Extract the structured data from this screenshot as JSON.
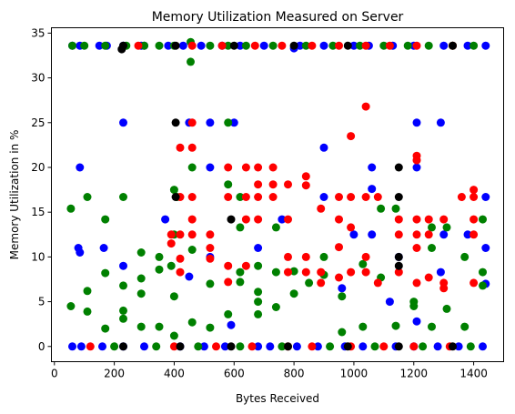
{
  "chart_data": {
    "type": "scatter",
    "title": "Memory Utilization Measured on Server",
    "xlabel": "Bytes Received",
    "ylabel": "Memory Utilization in %",
    "xlim": [
      -10,
      1500
    ],
    "ylim": [
      -1.7,
      35.6
    ],
    "xticks": [
      0,
      200,
      400,
      600,
      800,
      1000,
      1200,
      1400
    ],
    "yticks": [
      0,
      5,
      10,
      15,
      20,
      25,
      30,
      35
    ],
    "grid": false,
    "series": [
      {
        "color": "#0000ff",
        "points": [
          [
            60,
            33.6
          ],
          [
            85,
            33.6
          ],
          [
            150,
            33.6
          ],
          [
            175,
            33.6
          ],
          [
            230,
            33.6
          ],
          [
            290,
            33.6
          ],
          [
            300,
            33.6
          ],
          [
            380,
            33.6
          ],
          [
            430,
            33.6
          ],
          [
            490,
            33.6
          ],
          [
            560,
            33.6
          ],
          [
            620,
            33.6
          ],
          [
            700,
            33.6
          ],
          [
            800,
            33.3
          ],
          [
            820,
            33.6
          ],
          [
            900,
            33.6
          ],
          [
            1000,
            33.6
          ],
          [
            1050,
            33.6
          ],
          [
            1130,
            33.6
          ],
          [
            1200,
            33.6
          ],
          [
            1300,
            33.6
          ],
          [
            1380,
            33.6
          ],
          [
            1440,
            33.6
          ],
          [
            85,
            20.0
          ],
          [
            450,
            25.0
          ],
          [
            520,
            25.0
          ],
          [
            600,
            25.0
          ],
          [
            230,
            25.0
          ],
          [
            1290,
            25.0
          ],
          [
            1210,
            25.0
          ],
          [
            900,
            22.2
          ],
          [
            520,
            20.0
          ],
          [
            1060,
            20.0
          ],
          [
            1210,
            20.0
          ],
          [
            80,
            11.0
          ],
          [
            85,
            10.5
          ],
          [
            165,
            11.0
          ],
          [
            230,
            9.0
          ],
          [
            370,
            14.2
          ],
          [
            450,
            7.8
          ],
          [
            520,
            10.0
          ],
          [
            590,
            2.4
          ],
          [
            680,
            11.0
          ],
          [
            760,
            14.2
          ],
          [
            900,
            16.7
          ],
          [
            960,
            6.5
          ],
          [
            1000,
            12.5
          ],
          [
            1060,
            17.6
          ],
          [
            1060,
            12.5
          ],
          [
            1120,
            5.0
          ],
          [
            1150,
            10.0
          ],
          [
            1210,
            2.8
          ],
          [
            1290,
            8.3
          ],
          [
            1300,
            12.5
          ],
          [
            1380,
            12.5
          ],
          [
            1440,
            16.7
          ],
          [
            1440,
            11.0
          ],
          [
            1440,
            7.0
          ],
          [
            60,
            0
          ],
          [
            90,
            0
          ],
          [
            160,
            0
          ],
          [
            230,
            0
          ],
          [
            300,
            0
          ],
          [
            420,
            0
          ],
          [
            500,
            0
          ],
          [
            570,
            0
          ],
          [
            680,
            0
          ],
          [
            720,
            0
          ],
          [
            810,
            0
          ],
          [
            880,
            0
          ],
          [
            970,
            0
          ],
          [
            1030,
            0
          ],
          [
            1140,
            0
          ],
          [
            1200,
            0
          ],
          [
            1280,
            0
          ],
          [
            1350,
            0
          ],
          [
            1430,
            0
          ]
        ]
      },
      {
        "color": "#008000",
        "points": [
          [
            60,
            33.6
          ],
          [
            100,
            33.6
          ],
          [
            170,
            33.6
          ],
          [
            240,
            33.6
          ],
          [
            300,
            33.6
          ],
          [
            350,
            33.6
          ],
          [
            400,
            33.6
          ],
          [
            455,
            34.0
          ],
          [
            455,
            31.8
          ],
          [
            520,
            33.6
          ],
          [
            580,
            33.6
          ],
          [
            640,
            33.6
          ],
          [
            730,
            33.6
          ],
          [
            840,
            33.6
          ],
          [
            930,
            33.6
          ],
          [
            1020,
            33.6
          ],
          [
            1100,
            33.6
          ],
          [
            1180,
            33.6
          ],
          [
            1250,
            33.6
          ],
          [
            1330,
            33.6
          ],
          [
            1400,
            33.6
          ],
          [
            55,
            15.4
          ],
          [
            55,
            4.5
          ],
          [
            110,
            16.7
          ],
          [
            110,
            6.2
          ],
          [
            110,
            3.9
          ],
          [
            170,
            14.2
          ],
          [
            170,
            8.2
          ],
          [
            170,
            2.0
          ],
          [
            230,
            16.7
          ],
          [
            230,
            6.8
          ],
          [
            230,
            4.0
          ],
          [
            230,
            3.1
          ],
          [
            290,
            10.5
          ],
          [
            290,
            7.6
          ],
          [
            290,
            5.9
          ],
          [
            290,
            2.2
          ],
          [
            350,
            10.0
          ],
          [
            350,
            8.6
          ],
          [
            350,
            2.2
          ],
          [
            390,
            9.0
          ],
          [
            400,
            17.5
          ],
          [
            400,
            12.5
          ],
          [
            400,
            5.6
          ],
          [
            400,
            1.2
          ],
          [
            410,
            16.7
          ],
          [
            460,
            20.0
          ],
          [
            460,
            10.8
          ],
          [
            460,
            2.7
          ],
          [
            520,
            7.0
          ],
          [
            520,
            2.1
          ],
          [
            580,
            25.0
          ],
          [
            580,
            18.1
          ],
          [
            580,
            3.6
          ],
          [
            620,
            16.7
          ],
          [
            620,
            13.3
          ],
          [
            620,
            8.3
          ],
          [
            620,
            7.2
          ],
          [
            680,
            9.0
          ],
          [
            680,
            6.1
          ],
          [
            680,
            5.0
          ],
          [
            680,
            3.6
          ],
          [
            740,
            13.3
          ],
          [
            740,
            8.3
          ],
          [
            740,
            4.4
          ],
          [
            800,
            8.4
          ],
          [
            800,
            5.9
          ],
          [
            850,
            7.1
          ],
          [
            900,
            10.0
          ],
          [
            900,
            8.0
          ],
          [
            960,
            5.6
          ],
          [
            960,
            1.6
          ],
          [
            1030,
            9.2
          ],
          [
            1030,
            2.2
          ],
          [
            1090,
            15.4
          ],
          [
            1090,
            7.7
          ],
          [
            1140,
            15.4
          ],
          [
            1140,
            2.3
          ],
          [
            1200,
            5.0
          ],
          [
            1200,
            4.5
          ],
          [
            1260,
            13.3
          ],
          [
            1260,
            11.0
          ],
          [
            1260,
            2.2
          ],
          [
            1310,
            13.3
          ],
          [
            1310,
            4.2
          ],
          [
            1370,
            10.0
          ],
          [
            1370,
            2.2
          ],
          [
            1430,
            14.2
          ],
          [
            1430,
            8.3
          ],
          [
            1430,
            6.8
          ],
          [
            200,
            0
          ],
          [
            340,
            0
          ],
          [
            480,
            0
          ],
          [
            620,
            0
          ],
          [
            760,
            0
          ],
          [
            920,
            0
          ],
          [
            1070,
            0
          ],
          [
            1230,
            0
          ],
          [
            1390,
            0
          ]
        ]
      },
      {
        "color": "#ff0000",
        "points": [
          [
            280,
            33.6
          ],
          [
            460,
            33.6
          ],
          [
            560,
            33.6
          ],
          [
            670,
            33.6
          ],
          [
            760,
            33.6
          ],
          [
            860,
            33.6
          ],
          [
            950,
            33.6
          ],
          [
            1040,
            33.6
          ],
          [
            1120,
            33.6
          ],
          [
            1210,
            33.6
          ],
          [
            1330,
            33.6
          ],
          [
            1040,
            26.8
          ],
          [
            460,
            25.0
          ],
          [
            990,
            23.5
          ],
          [
            420,
            22.2
          ],
          [
            460,
            22.2
          ],
          [
            1210,
            21.3
          ],
          [
            1210,
            20.8
          ],
          [
            390,
            12.5
          ],
          [
            390,
            11.5
          ],
          [
            420,
            16.7
          ],
          [
            420,
            12.5
          ],
          [
            460,
            16.7
          ],
          [
            460,
            14.2
          ],
          [
            460,
            12.5
          ],
          [
            420,
            9.8
          ],
          [
            420,
            8.3
          ],
          [
            520,
            12.5
          ],
          [
            520,
            11.0
          ],
          [
            520,
            9.8
          ],
          [
            580,
            20.0
          ],
          [
            580,
            16.7
          ],
          [
            580,
            9.0
          ],
          [
            580,
            7.2
          ],
          [
            640,
            20.0
          ],
          [
            640,
            16.7
          ],
          [
            640,
            14.2
          ],
          [
            640,
            9.0
          ],
          [
            680,
            20.0
          ],
          [
            680,
            18.1
          ],
          [
            680,
            16.7
          ],
          [
            680,
            14.2
          ],
          [
            730,
            20.0
          ],
          [
            730,
            18.1
          ],
          [
            730,
            16.7
          ],
          [
            780,
            18.1
          ],
          [
            780,
            14.2
          ],
          [
            780,
            10.0
          ],
          [
            780,
            8.3
          ],
          [
            840,
            19.0
          ],
          [
            840,
            18.0
          ],
          [
            840,
            10.0
          ],
          [
            840,
            8.3
          ],
          [
            890,
            15.4
          ],
          [
            890,
            8.3
          ],
          [
            890,
            7.1
          ],
          [
            950,
            16.7
          ],
          [
            950,
            14.2
          ],
          [
            950,
            11.1
          ],
          [
            950,
            7.7
          ],
          [
            990,
            16.7
          ],
          [
            990,
            13.3
          ],
          [
            990,
            8.3
          ],
          [
            1040,
            16.7
          ],
          [
            1040,
            10.0
          ],
          [
            1040,
            8.3
          ],
          [
            1080,
            16.7
          ],
          [
            1080,
            7.1
          ],
          [
            1150,
            14.2
          ],
          [
            1150,
            12.5
          ],
          [
            1150,
            8.3
          ],
          [
            1210,
            14.2
          ],
          [
            1210,
            12.5
          ],
          [
            1210,
            11.0
          ],
          [
            1210,
            7.1
          ],
          [
            1250,
            14.2
          ],
          [
            1250,
            12.5
          ],
          [
            1250,
            7.7
          ],
          [
            1300,
            14.2
          ],
          [
            1300,
            7.1
          ],
          [
            1300,
            6.5
          ],
          [
            1360,
            16.7
          ],
          [
            1400,
            17.5
          ],
          [
            1400,
            16.7
          ],
          [
            1400,
            14.2
          ],
          [
            1400,
            12.5
          ],
          [
            1400,
            7.1
          ],
          [
            120,
            0
          ],
          [
            400,
            0
          ],
          [
            540,
            0
          ],
          [
            660,
            0
          ],
          [
            780,
            0
          ],
          [
            860,
            0
          ],
          [
            990,
            0
          ],
          [
            1100,
            0
          ],
          [
            1200,
            0
          ],
          [
            1320,
            0
          ]
        ]
      },
      {
        "color": "#000000",
        "points": [
          [
            230,
            33.6
          ],
          [
            225,
            33.2
          ],
          [
            405,
            33.6
          ],
          [
            600,
            33.6
          ],
          [
            800,
            33.6
          ],
          [
            980,
            33.6
          ],
          [
            1330,
            33.6
          ],
          [
            405,
            25.0
          ],
          [
            405,
            16.7
          ],
          [
            590,
            14.2
          ],
          [
            1150,
            20.0
          ],
          [
            1150,
            16.7
          ],
          [
            1150,
            10.0
          ],
          [
            1150,
            9.0
          ],
          [
            230,
            0
          ],
          [
            420,
            0
          ],
          [
            590,
            0
          ],
          [
            780,
            0
          ],
          [
            980,
            0
          ],
          [
            1150,
            0
          ],
          [
            1330,
            0
          ]
        ]
      }
    ]
  }
}
